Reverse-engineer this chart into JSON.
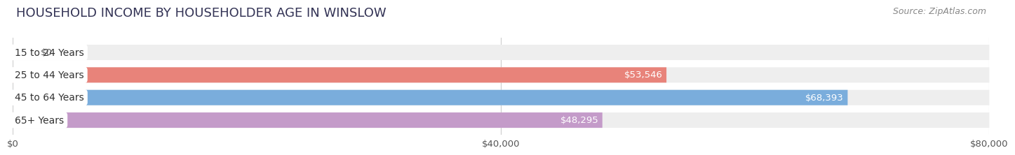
{
  "title": "HOUSEHOLD INCOME BY HOUSEHOLDER AGE IN WINSLOW",
  "source": "Source: ZipAtlas.com",
  "categories": [
    "15 to 24 Years",
    "25 to 44 Years",
    "45 to 64 Years",
    "65+ Years"
  ],
  "values": [
    0,
    53546,
    68393,
    48295
  ],
  "value_labels": [
    "$0",
    "$53,546",
    "$68,393",
    "$48,295"
  ],
  "bar_colors": [
    "#f5c9a0",
    "#e8837a",
    "#7aaddc",
    "#c49bc9"
  ],
  "xlim": [
    0,
    80000
  ],
  "xticks": [
    0,
    40000,
    80000
  ],
  "xtick_labels": [
    "$0",
    "$40,000",
    "$80,000"
  ],
  "title_fontsize": 13,
  "source_fontsize": 9,
  "label_fontsize": 10,
  "value_fontsize": 9.5,
  "tick_fontsize": 9.5,
  "background_color": "#ffffff",
  "plot_bg_color": "#ffffff",
  "bar_bg_color": "#eeeeee",
  "bar_height": 0.68,
  "bar_gap": 0.32,
  "value_label_colors": [
    "#7a5a30",
    "#ffffff",
    "#ffffff",
    "#ffffff"
  ],
  "grid_color": "#cccccc"
}
